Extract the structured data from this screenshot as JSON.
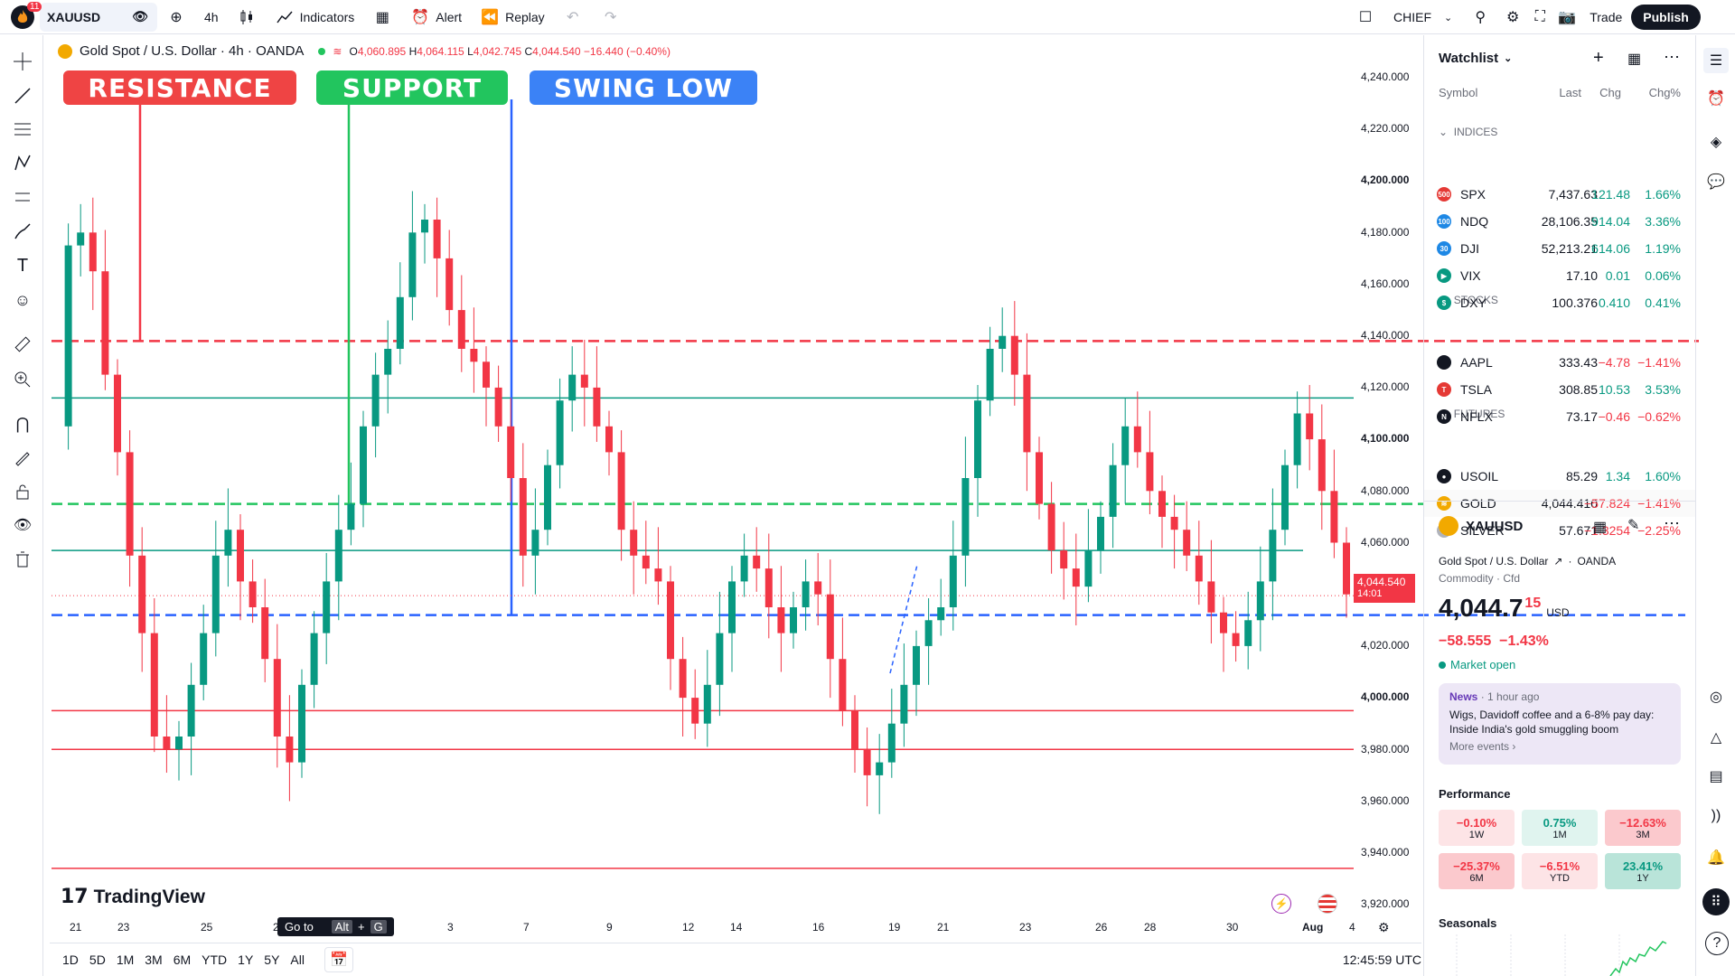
{
  "topbar": {
    "notif_count": "11",
    "symbol": "XAUUSD",
    "interval": "4h",
    "indicators_label": "Indicators",
    "alert_label": "Alert",
    "replay_label": "Replay",
    "layout_name": "CHIEF",
    "trade_label": "Trade",
    "publish_label": "Publish"
  },
  "legend": {
    "title": "Gold Spot / U.S. Dollar · 4h · OANDA",
    "o_label": "O",
    "o_value": "4,060.895",
    "h_label": "H",
    "h_value": "4,064.115",
    "l_label": "L",
    "l_value": "4,042.745",
    "c_label": "C",
    "c_value": "4,044.540",
    "change": "−16.440 (−0.40%)"
  },
  "tags": {
    "resistance": "RESISTANCE",
    "support": "SUPPORT",
    "swing_low": "SWING LOW"
  },
  "price_axis": [
    "4,240.000",
    "4,220.000",
    "4,200.000",
    "4,180.000",
    "4,160.000",
    "4,140.000",
    "4,120.000",
    "4,100.000",
    "4,080.000",
    "4,060.000",
    "4,040.000",
    "4,020.000",
    "4,000.000",
    "3,980.000",
    "3,960.000",
    "3,940.000",
    "3,920.000"
  ],
  "current_price": {
    "value": "4,044.540",
    "countdown": "14:01"
  },
  "time_axis": [
    "21",
    "23",
    "25",
    "28",
    "3",
    "7",
    "9",
    "12",
    "14",
    "16",
    "19",
    "21",
    "23",
    "26",
    "28",
    "30",
    "Aug",
    "4"
  ],
  "goto_tooltip": {
    "label": "Go to",
    "key1": "Alt",
    "plus": "+",
    "key2": "G"
  },
  "branding": "TradingView",
  "bottombar": {
    "ranges": [
      "1D",
      "5D",
      "1M",
      "3M",
      "6M",
      "YTD",
      "1Y",
      "5Y",
      "All"
    ],
    "time": "12:45:59 UTC"
  },
  "watchlist": {
    "title": "Watchlist",
    "columns": {
      "symbol": "Symbol",
      "last": "Last",
      "chg": "Chg",
      "pct": "Chg%"
    },
    "sections": [
      "INDICES",
      "STOCKS",
      "FUTURES"
    ],
    "rows": [
      {
        "icon": "500",
        "color": "#e53935",
        "sym": "SPX",
        "last": "7,437.63",
        "chg": "121.48",
        "pct": "1.66%",
        "dir": "up"
      },
      {
        "icon": "100",
        "color": "#1e88e5",
        "sym": "NDQ",
        "last": "28,106.35",
        "chg": "914.04",
        "pct": "3.36%",
        "dir": "up"
      },
      {
        "icon": "30",
        "color": "#1e88e5",
        "sym": "DJI",
        "last": "52,213.21",
        "chg": "614.06",
        "pct": "1.19%",
        "dir": "up"
      },
      {
        "icon": "▶",
        "color": "#089981",
        "sym": "VIX",
        "last": "17.10",
        "chg": "0.01",
        "pct": "0.06%",
        "dir": "up"
      },
      {
        "icon": "$",
        "color": "#089981",
        "sym": "DXY",
        "last": "100.376",
        "chg": "0.410",
        "pct": "0.41%",
        "dir": "up"
      },
      {
        "icon": "",
        "color": "#131722",
        "sym": "AAPL",
        "last": "333.43",
        "chg": "−4.78",
        "pct": "−1.41%",
        "dir": "down"
      },
      {
        "icon": "T",
        "color": "#e53935",
        "sym": "TSLA",
        "last": "308.85",
        "chg": "10.53",
        "pct": "3.53%",
        "dir": "up"
      },
      {
        "icon": "N",
        "color": "#131722",
        "sym": "NFLX",
        "last": "73.17",
        "chg": "−0.46",
        "pct": "−0.62%",
        "dir": "down"
      },
      {
        "icon": "●",
        "color": "#131722",
        "sym": "USOIL",
        "last": "85.29",
        "chg": "1.34",
        "pct": "1.60%",
        "dir": "up"
      },
      {
        "icon": "≋",
        "color": "#f2a900",
        "sym": "GOLD",
        "last": "4,044.410",
        "chg": "−57.824",
        "pct": "−1.41%",
        "dir": "down"
      },
      {
        "icon": "≋",
        "color": "#b0b3bb",
        "sym": "SILVER",
        "last": "57.671",
        "chg": "−1.3254",
        "pct": "−2.25%",
        "dir": "down"
      }
    ]
  },
  "details": {
    "symbol": "XAUUSD",
    "name": "Gold Spot / U.S. Dollar",
    "exchange": "OANDA",
    "type": "Commodity",
    "subtype": "Cfd",
    "price_main": "4,044.7",
    "price_sup": "15",
    "currency": "USD",
    "change": "−58.555",
    "change_pct": "−1.43%",
    "status": "Market open"
  },
  "news": {
    "label": "News",
    "time": "1 hour ago",
    "headline": "Wigs, Davidoff coffee and a 6-8% pay day: Inside India's gold smuggling boom",
    "more": "More events ›"
  },
  "performance": {
    "title": "Performance",
    "items": [
      {
        "value": "−0.10%",
        "label": "1W",
        "dir": "down"
      },
      {
        "value": "0.75%",
        "label": "1M",
        "dir": "up"
      },
      {
        "value": "−12.63%",
        "label": "3M",
        "dir": "down"
      },
      {
        "value": "−25.37%",
        "label": "6M",
        "dir": "down"
      },
      {
        "value": "−6.51%",
        "label": "YTD",
        "dir": "down"
      },
      {
        "value": "23.41%",
        "label": "1Y",
        "dir": "up"
      }
    ]
  },
  "seasonals_title": "Seasonals",
  "colors": {
    "up": "#089981",
    "down": "#f23645",
    "resistance": "#f23645",
    "support": "#22c55e",
    "swing": "#2962ff"
  }
}
